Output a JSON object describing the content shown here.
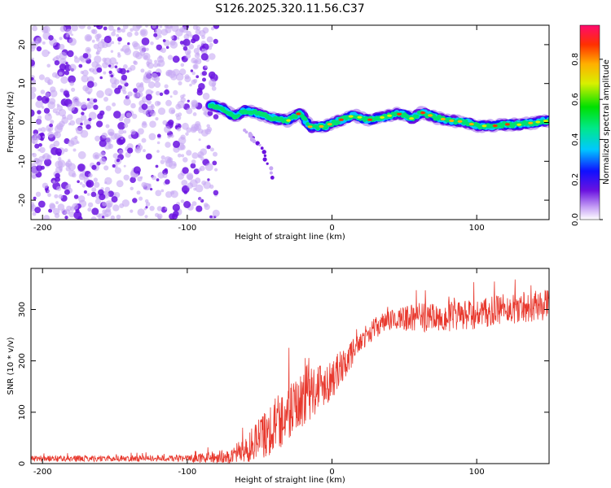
{
  "title": "S126.2025.320.11.56.C37",
  "colors": {
    "snr_line": "#e8392e",
    "speckle_dark": "#6a12e0",
    "speckle_light": "#c7a8f4",
    "axis": "#000000"
  },
  "chart_data": [
    {
      "type": "heatmap",
      "name": "spectrogram",
      "xlabel": "Height of straight line (km)",
      "ylabel": "Frequency (Hz)",
      "xlim": [
        -208,
        150
      ],
      "ylim": [
        -25,
        25
      ],
      "xticks": [
        -200,
        -100,
        0,
        100
      ],
      "yticks": [
        -20,
        -10,
        0,
        10,
        20
      ],
      "noise_region_x": [
        -208,
        -80
      ],
      "colorbar": {
        "label": "Normalized spectral amplitude",
        "range": [
          0,
          0.97
        ],
        "ticks": [
          0.0,
          0.2,
          0.4,
          0.6,
          0.8
        ]
      },
      "tone_track": {
        "x": [
          -84,
          -75,
          -68,
          -60,
          -50,
          -40,
          -30,
          -22,
          -15,
          -5,
          5,
          15,
          25,
          35,
          45,
          50,
          55,
          62,
          70,
          80,
          90,
          100,
          110,
          120,
          130,
          140,
          150
        ],
        "freq": [
          4.5,
          3.5,
          1.5,
          3.0,
          2.2,
          1.0,
          0.5,
          2.5,
          -1.2,
          -1.0,
          0.5,
          1.8,
          0.6,
          1.3,
          2.2,
          2.0,
          1.0,
          2.6,
          1.5,
          0.5,
          0.2,
          -0.8,
          -1.0,
          -0.5,
          -0.6,
          0.0,
          0.5
        ]
      },
      "side_branch": {
        "x": [
          -60,
          -50,
          -45,
          -40
        ],
        "freq": [
          -2,
          -6,
          -10,
          -15
        ]
      }
    },
    {
      "type": "line",
      "name": "snr",
      "xlabel": "Height of straight line (km)",
      "ylabel": "SNR (10 * v/v)",
      "xlim": [
        -208,
        150
      ],
      "ylim": [
        0,
        380
      ],
      "xticks": [
        -200,
        -100,
        0,
        100
      ],
      "yticks": [
        0,
        100,
        200,
        300
      ],
      "envelope": {
        "x": [
          -208,
          -100,
          -75,
          -60,
          -50,
          -40,
          -30,
          -20,
          -10,
          0,
          10,
          20,
          30,
          40,
          60,
          80,
          100,
          120,
          150
        ],
        "mean": [
          10,
          10,
          12,
          25,
          50,
          75,
          100,
          130,
          150,
          165,
          200,
          240,
          265,
          280,
          285,
          285,
          290,
          300,
          310
        ],
        "spread": [
          6,
          6,
          15,
          25,
          45,
          55,
          60,
          60,
          50,
          40,
          30,
          20,
          20,
          22,
          28,
          30,
          30,
          30,
          30
        ]
      }
    }
  ]
}
